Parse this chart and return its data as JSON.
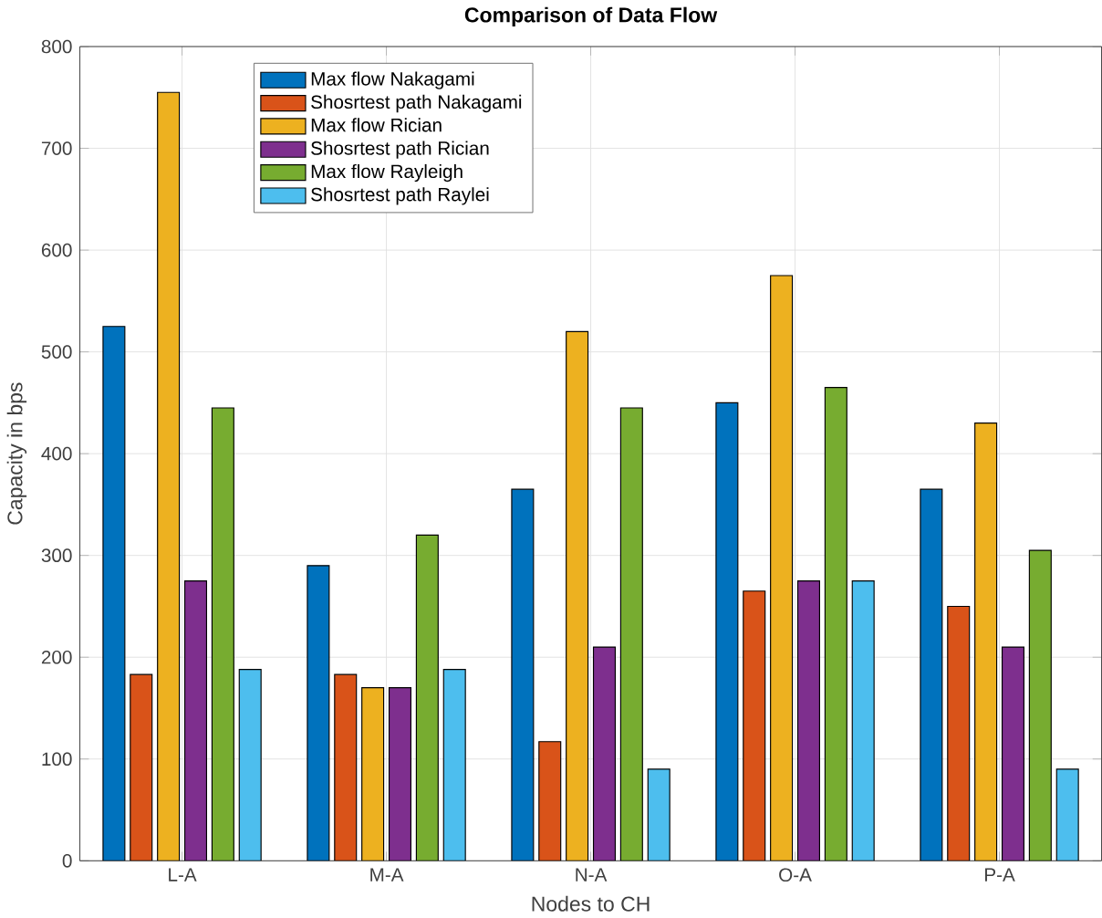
{
  "chart_data": {
    "type": "bar",
    "title": "Comparison of Data Flow",
    "xlabel": "Nodes to CH",
    "ylabel": "Capacity in bps",
    "categories": [
      "L-A",
      "M-A",
      "N-A",
      "O-A",
      "P-A"
    ],
    "series": [
      {
        "name": "Max flow Nakagami",
        "color": "#0072bd",
        "values": [
          525,
          290,
          365,
          450,
          365
        ]
      },
      {
        "name": "Shosrtest path Nakagami",
        "color": "#d95319",
        "values": [
          183,
          183,
          117,
          265,
          250
        ]
      },
      {
        "name": "Max flow Rician",
        "color": "#edb120",
        "values": [
          755,
          170,
          520,
          575,
          430
        ]
      },
      {
        "name": "Shosrtest path Rician",
        "color": "#7e2f8e",
        "values": [
          275,
          170,
          210,
          275,
          210
        ]
      },
      {
        "name": "Max flow Rayleigh",
        "color": "#77ac30",
        "values": [
          445,
          320,
          445,
          465,
          305
        ]
      },
      {
        "name": "Shosrtest path Raylei",
        "color": "#4dbeee",
        "values": [
          188,
          188,
          90,
          275,
          90
        ]
      }
    ],
    "ylim": [
      0,
      800
    ],
    "yticks": [
      0,
      100,
      200,
      300,
      400,
      500,
      600,
      700,
      800
    ],
    "grid": true,
    "legend": "top left"
  }
}
